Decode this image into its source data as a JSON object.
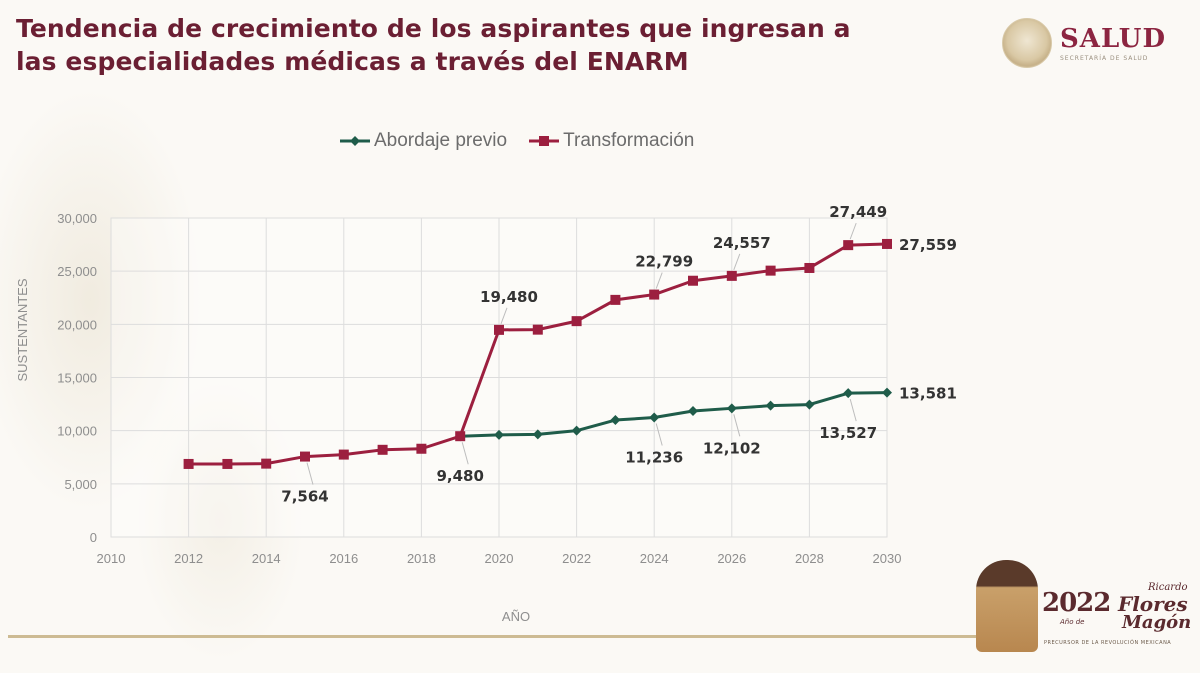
{
  "title": {
    "line1": "Tendencia de crecimiento de los aspirantes que ingresan a",
    "line2": "las especialidades médicas a través del ENARM"
  },
  "logo": {
    "name": "SALUD",
    "subtitle": "SECRETARÍA DE SALUD"
  },
  "footer_logo": {
    "year": "2022",
    "ano_de": "Año de",
    "first_name": "Ricardo",
    "last_name_1": "Flores",
    "last_name_2": "Magón",
    "tagline": "PRECURSOR DE LA REVOLUCIÓN MEXICANA"
  },
  "colors": {
    "title": "#6b1f33",
    "abordaje": "#1f5c4a",
    "transformacion": "#9c1f3f",
    "grid": "#dddddd"
  },
  "chart_data": {
    "type": "line",
    "title": "Tendencia de crecimiento de los aspirantes que ingresan a las especialidades médicas a través del ENARM",
    "xlabel": "AÑO",
    "ylabel": "SUSTENTANTES",
    "xlim": [
      2010,
      2030
    ],
    "ylim": [
      0,
      30000
    ],
    "x_ticks": [
      2010,
      2012,
      2014,
      2016,
      2018,
      2020,
      2022,
      2024,
      2026,
      2028,
      2030
    ],
    "y_ticks": [
      0,
      5000,
      10000,
      15000,
      20000,
      25000,
      30000
    ],
    "x_tick_labels": [
      "2010",
      "2012",
      "2014",
      "2016",
      "2018",
      "2020",
      "2022",
      "2024",
      "2026",
      "2028",
      "2030"
    ],
    "y_tick_labels": [
      "0",
      "5,000",
      "10,000",
      "15,000",
      "20,000",
      "25,000",
      "30,000"
    ],
    "grid": true,
    "legend_position": "top-center",
    "series": [
      {
        "name": "Abordaje previo",
        "color": "#1f5c4a",
        "marker": "diamond",
        "x": [
          2019,
          2020,
          2021,
          2022,
          2023,
          2024,
          2025,
          2026,
          2027,
          2028,
          2029,
          2030
        ],
        "values": [
          9480,
          9600,
          9650,
          10000,
          11000,
          11236,
          11850,
          12102,
          12350,
          12450,
          13527,
          13581
        ],
        "labels": [
          {
            "x": 2024,
            "value": 11236,
            "text": "11,236",
            "position": "below"
          },
          {
            "x": 2026,
            "value": 12102,
            "text": "12,102",
            "position": "below"
          },
          {
            "x": 2029,
            "value": 13527,
            "text": "13,527",
            "position": "below"
          },
          {
            "x": 2030,
            "value": 13581,
            "text": "13,581",
            "position": "right"
          }
        ]
      },
      {
        "name": "Transformación",
        "color": "#9c1f3f",
        "marker": "square",
        "x": [
          2012,
          2013,
          2014,
          2015,
          2016,
          2017,
          2018,
          2019,
          2020,
          2021,
          2022,
          2023,
          2024,
          2025,
          2026,
          2027,
          2028,
          2029,
          2030
        ],
        "values": [
          6870,
          6870,
          6900,
          7564,
          7750,
          8200,
          8300,
          9480,
          19480,
          19500,
          20300,
          22300,
          22799,
          24100,
          24557,
          25050,
          25300,
          27449,
          27559
        ],
        "labels": [
          {
            "x": 2015,
            "value": 7564,
            "text": "7,564",
            "position": "below"
          },
          {
            "x": 2019,
            "value": 9480,
            "text": "9,480",
            "position": "below"
          },
          {
            "x": 2020,
            "value": 19480,
            "text": "19,480",
            "position": "above"
          },
          {
            "x": 2024,
            "value": 22799,
            "text": "22,799",
            "position": "above"
          },
          {
            "x": 2026,
            "value": 24557,
            "text": "24,557",
            "position": "above"
          },
          {
            "x": 2029,
            "value": 27449,
            "text": "27,449",
            "position": "above"
          },
          {
            "x": 2030,
            "value": 27559,
            "text": "27,559",
            "position": "right"
          }
        ]
      }
    ]
  }
}
